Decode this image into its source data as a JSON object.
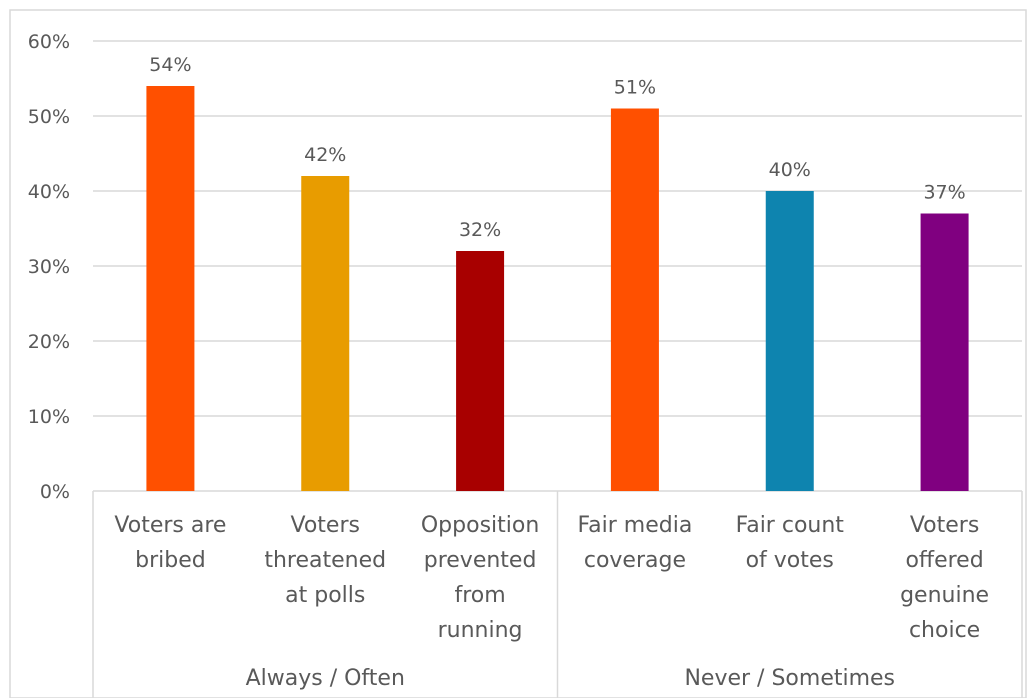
{
  "chart_data": {
    "type": "bar",
    "categories": [
      "Voters are bribed",
      "Voters threatened at polls",
      "Opposition prevented from running",
      "Fair media coverage",
      "Fair count of votes",
      "Voters offered genuine choice"
    ],
    "category_lines": [
      [
        "Voters are",
        "bribed"
      ],
      [
        "Voters",
        "threatened",
        "at polls"
      ],
      [
        "Opposition",
        "prevented",
        "from",
        "running"
      ],
      [
        "Fair media",
        "coverage"
      ],
      [
        "Fair count",
        "of votes"
      ],
      [
        "Voters",
        "offered",
        "genuine",
        "choice"
      ]
    ],
    "values": [
      54,
      42,
      32,
      51,
      40,
      37
    ],
    "data_labels": [
      "54%",
      "42%",
      "32%",
      "51%",
      "40%",
      "37%"
    ],
    "colors": [
      "#FF5000",
      "#E89C00",
      "#A80000",
      "#FF5000",
      "#0E84AF",
      "#800080"
    ],
    "groups": [
      {
        "label": "Always / Often",
        "count": 3
      },
      {
        "label": "Never / Sometimes",
        "count": 3
      }
    ],
    "y_ticks": [
      "0%",
      "10%",
      "20%",
      "30%",
      "40%",
      "50%",
      "60%"
    ],
    "ylim": [
      0,
      60
    ],
    "grid": true,
    "title": "",
    "xlabel": "",
    "ylabel": ""
  }
}
